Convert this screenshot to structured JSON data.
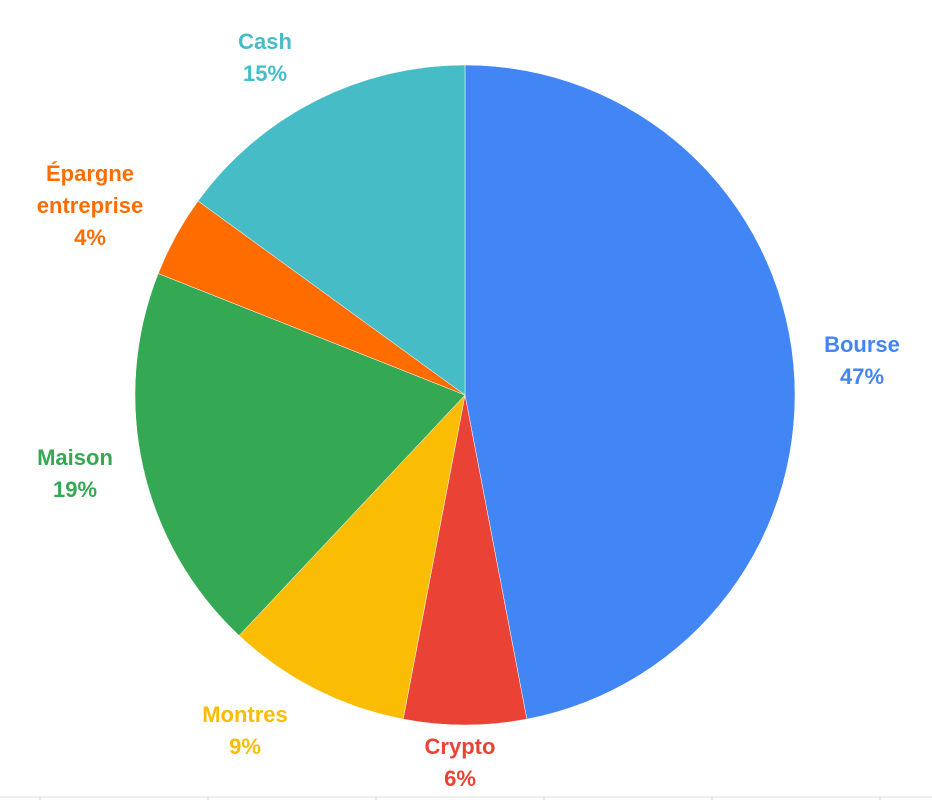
{
  "chart_data": {
    "type": "pie",
    "title": "",
    "start_angle_deg": 0,
    "direction": "clockwise",
    "slices": [
      {
        "label": "Bourse",
        "value": 47,
        "value_label": "47%",
        "color": "#4285F4"
      },
      {
        "label": "Crypto",
        "value": 6,
        "value_label": "6%",
        "color": "#EA4335"
      },
      {
        "label": "Montres",
        "value": 9,
        "value_label": "9%",
        "color": "#FBBC04"
      },
      {
        "label": "Maison",
        "value": 19,
        "value_label": "19%",
        "color": "#34A853"
      },
      {
        "label": "Épargne entreprise",
        "value": 4,
        "value_label": "4%",
        "color": "#FF6D01",
        "label_lines": [
          "Épargne",
          "entreprise"
        ]
      },
      {
        "label": "Cash",
        "value": 15,
        "value_label": "15%",
        "color": "#46BDC6"
      }
    ]
  }
}
